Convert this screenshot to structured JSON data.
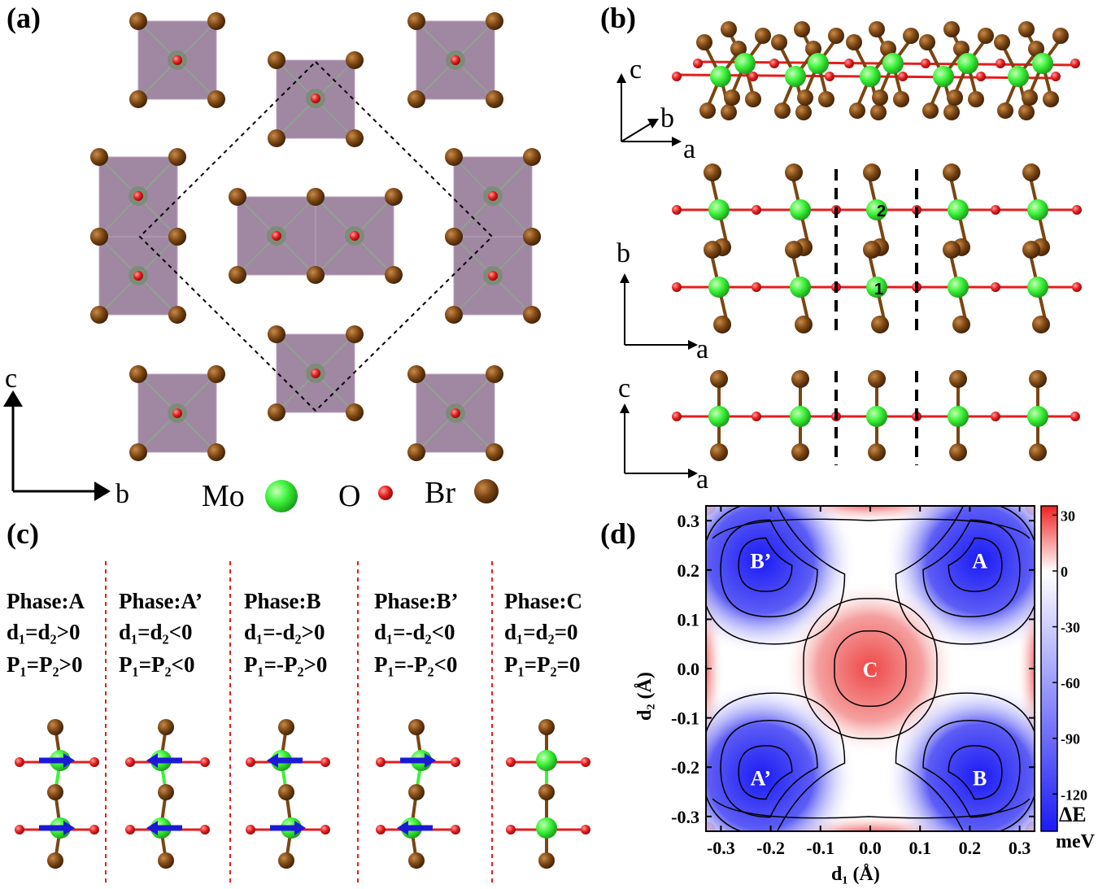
{
  "panels": {
    "a": "(a)",
    "b": "(b)",
    "c": "(c)",
    "d": "(d)"
  },
  "axes_a": {
    "vertical": "c",
    "horizontal": "b"
  },
  "axes_b": [
    {
      "up": "c",
      "diag": "b",
      "right": "a"
    },
    {
      "up": "b",
      "right": "a"
    },
    {
      "up": "c",
      "right": "a"
    }
  ],
  "atom_numbers": [
    "2",
    "1"
  ],
  "legend": [
    {
      "label": "Mo",
      "color": "#3cf23a"
    },
    {
      "label": "O",
      "color": "#e41d1d"
    },
    {
      "label": "Br",
      "color": "#7a4512"
    }
  ],
  "phases": [
    {
      "name": "Phase:A",
      "cond1": "d₁=d₂>0",
      "cond2": "P₁=P₂>0",
      "arrow_top": "right",
      "arrow_bottom": "right"
    },
    {
      "name": "Phase:A’",
      "cond1": "d₁=d₂<0",
      "cond2": "P₁=P₂<0",
      "arrow_top": "left",
      "arrow_bottom": "left"
    },
    {
      "name": "Phase:B",
      "cond1": "d₁=-d₂>0",
      "cond2": "P₁=-P₂>0",
      "arrow_top": "left",
      "arrow_bottom": "right"
    },
    {
      "name": "Phase:B’",
      "cond1": "d₁=-d₂<0",
      "cond2": "P₁=-P₂<0",
      "arrow_top": "right",
      "arrow_bottom": "left"
    },
    {
      "name": "Phase:C",
      "cond1": "d₁=d₂=0",
      "cond2": "P₁=P₂=0",
      "arrow_top": "none",
      "arrow_bottom": "none"
    }
  ],
  "chart_data": {
    "type": "heatmap",
    "xlabel": "d₁ (Å)",
    "ylabel": "d₂ (Å)",
    "xlim": [
      -0.33,
      0.33
    ],
    "ylim": [
      -0.33,
      0.33
    ],
    "x_ticks": [
      "-0.3",
      "-0.2",
      "-0.1",
      "0.0",
      "0.1",
      "0.2",
      "0.3"
    ],
    "y_ticks": [
      "0.3",
      "0.2",
      "0.1",
      "0.0",
      "-0.1",
      "-0.2",
      "-0.3"
    ],
    "x_tick_values": [
      -0.3,
      -0.2,
      -0.1,
      0.0,
      0.1,
      0.2,
      0.3
    ],
    "y_tick_values": [
      0.3,
      0.2,
      0.1,
      0.0,
      -0.1,
      -0.2,
      -0.3
    ],
    "colorbar": {
      "label": "ΔE",
      "unit": "meV",
      "ticks": [
        "30",
        "0",
        "-30",
        "-60",
        "-90",
        "-120"
      ],
      "tick_values": [
        30,
        0,
        -30,
        -60,
        -90,
        -120
      ],
      "range": [
        -140,
        35
      ],
      "colormap": [
        "#1b1bf5",
        "#ffffff",
        "#ee2222"
      ]
    },
    "minima": [
      {
        "label": "A",
        "x": 0.22,
        "y": 0.22
      },
      {
        "label": "B’",
        "x": -0.22,
        "y": 0.22
      },
      {
        "label": "C",
        "x": 0.0,
        "y": 0.0
      },
      {
        "label": "A’",
        "x": -0.22,
        "y": -0.22
      },
      {
        "label": "B",
        "x": 0.22,
        "y": -0.22
      }
    ]
  }
}
